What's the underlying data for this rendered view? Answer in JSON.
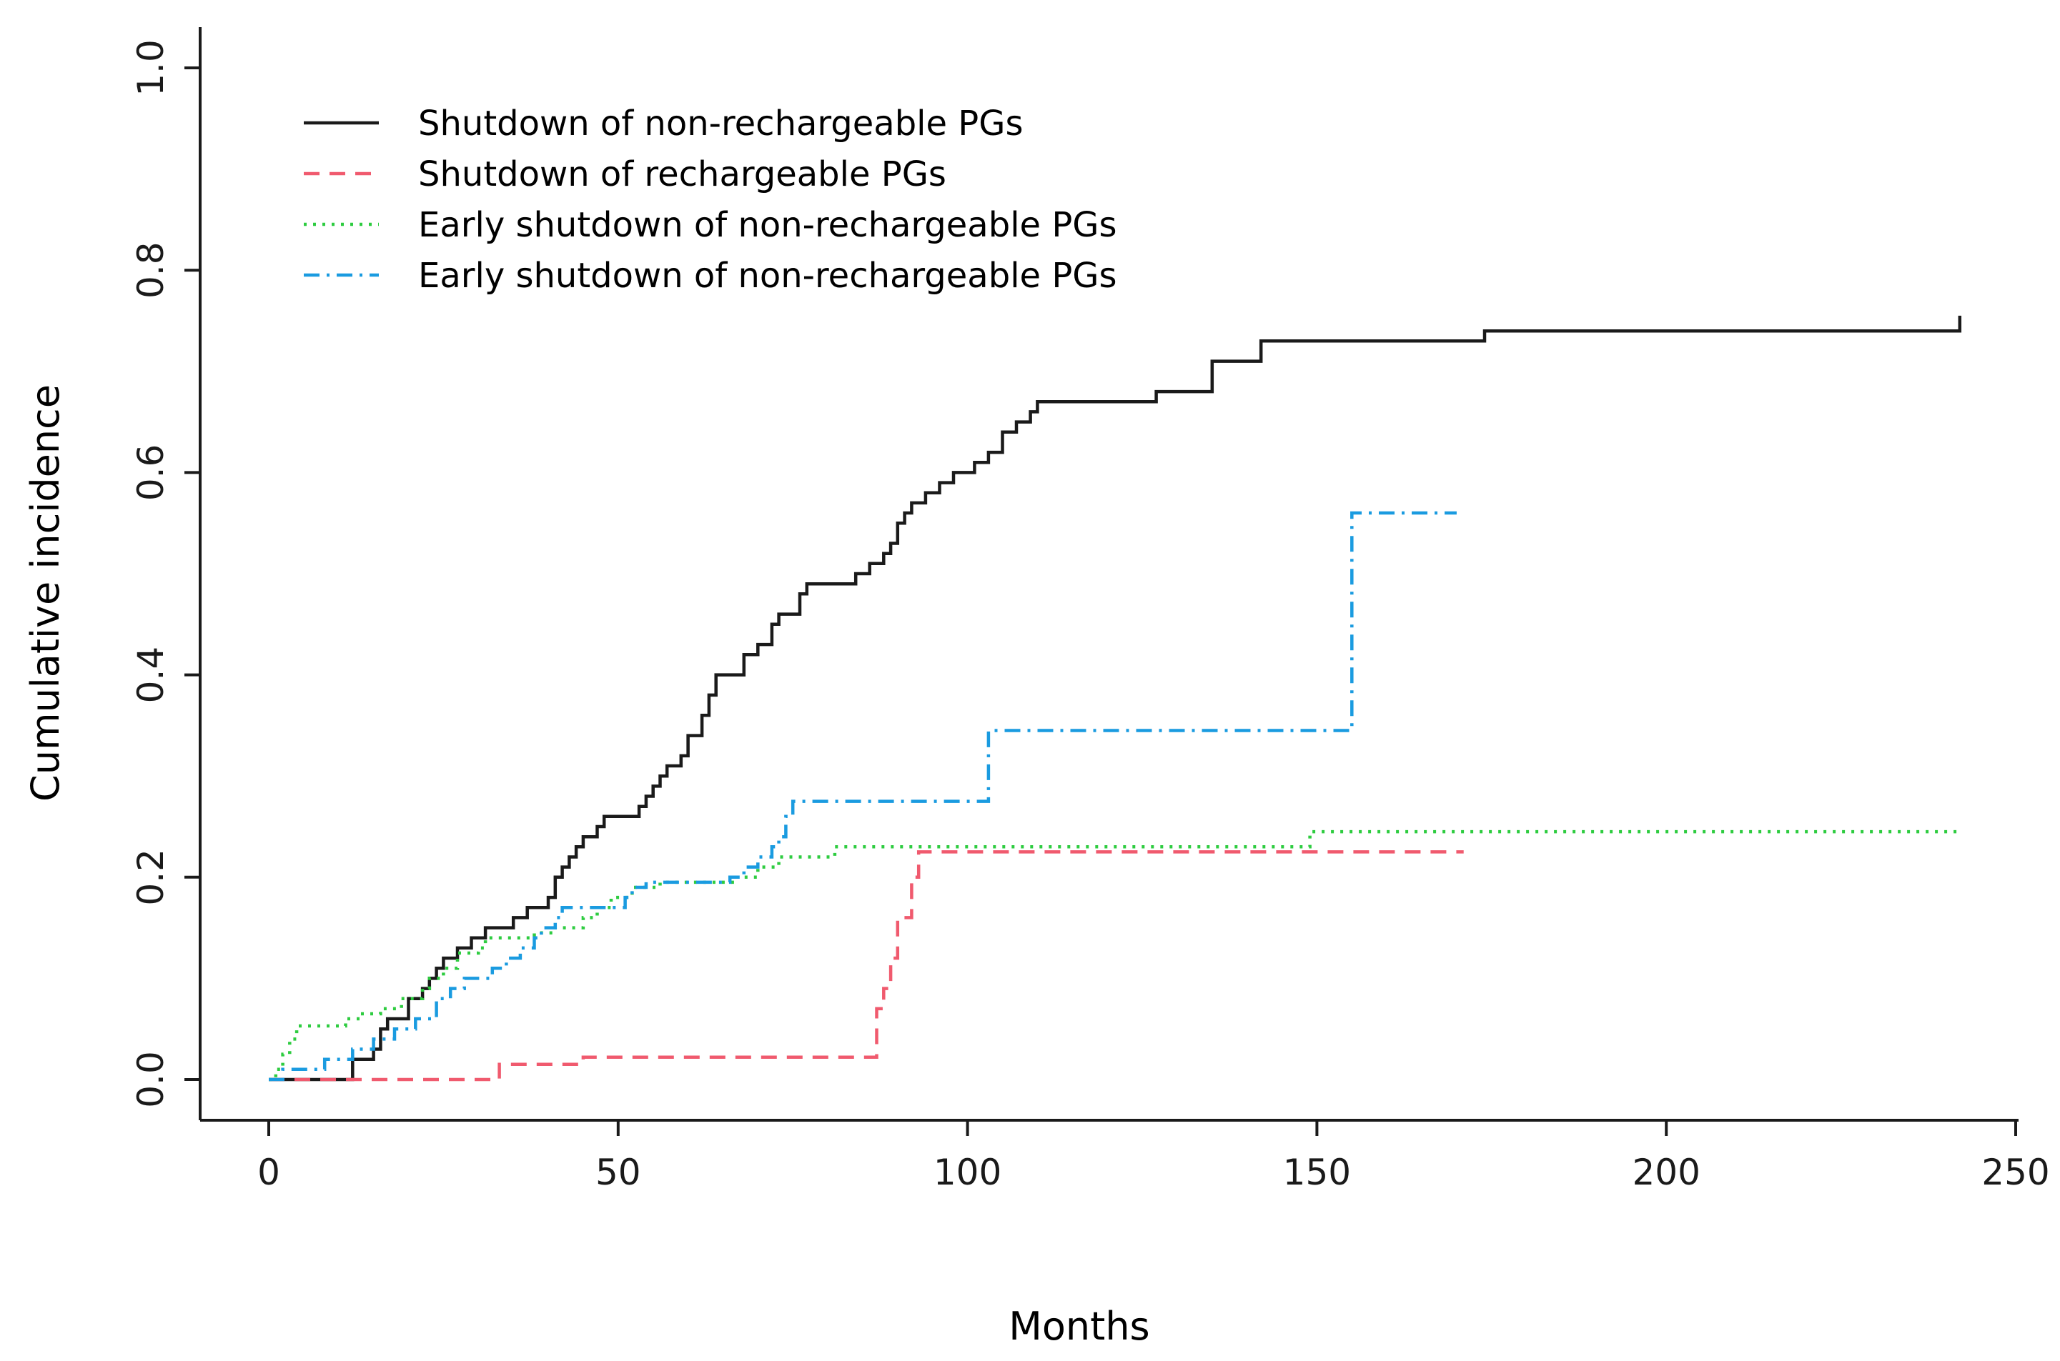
{
  "chart_data": {
    "type": "line",
    "step": true,
    "title": "",
    "xlabel": "Months",
    "ylabel": "Cumulative incidence",
    "xlim": [
      0,
      250
    ],
    "ylim": [
      0,
      1.0
    ],
    "xticks": [
      "0",
      "50",
      "100",
      "150",
      "200",
      "250"
    ],
    "yticks": [
      "0.0",
      "0.2",
      "0.4",
      "0.6",
      "0.8",
      "1.0"
    ],
    "grid": false,
    "legend_position": "top-left",
    "series": [
      {
        "name": "Shutdown of non-rechargeable PGs",
        "color": "#1a1a1a",
        "dash": "solid",
        "points": [
          [
            0,
            0.0
          ],
          [
            11,
            0.0
          ],
          [
            12,
            0.02
          ],
          [
            15,
            0.03
          ],
          [
            16,
            0.05
          ],
          [
            17,
            0.06
          ],
          [
            20,
            0.08
          ],
          [
            22,
            0.09
          ],
          [
            23,
            0.1
          ],
          [
            24,
            0.11
          ],
          [
            25,
            0.12
          ],
          [
            27,
            0.13
          ],
          [
            29,
            0.14
          ],
          [
            31,
            0.15
          ],
          [
            35,
            0.16
          ],
          [
            37,
            0.17
          ],
          [
            40,
            0.18
          ],
          [
            41,
            0.2
          ],
          [
            42,
            0.21
          ],
          [
            43,
            0.22
          ],
          [
            44,
            0.23
          ],
          [
            45,
            0.24
          ],
          [
            47,
            0.25
          ],
          [
            48,
            0.26
          ],
          [
            53,
            0.27
          ],
          [
            54,
            0.28
          ],
          [
            55,
            0.29
          ],
          [
            56,
            0.3
          ],
          [
            57,
            0.31
          ],
          [
            59,
            0.32
          ],
          [
            60,
            0.34
          ],
          [
            62,
            0.36
          ],
          [
            63,
            0.38
          ],
          [
            64,
            0.4
          ],
          [
            68,
            0.42
          ],
          [
            70,
            0.43
          ],
          [
            72,
            0.45
          ],
          [
            73,
            0.46
          ],
          [
            76,
            0.48
          ],
          [
            77,
            0.49
          ],
          [
            84,
            0.5
          ],
          [
            86,
            0.51
          ],
          [
            88,
            0.52
          ],
          [
            89,
            0.53
          ],
          [
            90,
            0.55
          ],
          [
            91,
            0.56
          ],
          [
            92,
            0.57
          ],
          [
            94,
            0.58
          ],
          [
            96,
            0.59
          ],
          [
            98,
            0.6
          ],
          [
            101,
            0.61
          ],
          [
            103,
            0.62
          ],
          [
            105,
            0.64
          ],
          [
            107,
            0.65
          ],
          [
            109,
            0.66
          ],
          [
            110,
            0.67
          ],
          [
            127,
            0.68
          ],
          [
            135,
            0.71
          ],
          [
            142,
            0.73
          ],
          [
            174,
            0.74
          ],
          [
            242,
            0.74
          ],
          [
            242,
            0.755
          ]
        ]
      },
      {
        "name": "Shutdown of  rechargeable PGs",
        "color": "#f05a6e",
        "dash": "dashed",
        "points": [
          [
            0,
            0.0
          ],
          [
            33,
            0.0
          ],
          [
            33,
            0.015
          ],
          [
            45,
            0.015
          ],
          [
            45,
            0.022
          ],
          [
            87,
            0.022
          ],
          [
            87,
            0.07
          ],
          [
            88,
            0.09
          ],
          [
            89,
            0.12
          ],
          [
            90,
            0.16
          ],
          [
            92,
            0.2
          ],
          [
            93,
            0.225
          ],
          [
            171,
            0.225
          ]
        ]
      },
      {
        "name": "Early shutdown of non-rechargeable PGs",
        "color": "#2ecc40",
        "dash": "dotted",
        "points": [
          [
            0,
            0.0
          ],
          [
            1,
            0.01
          ],
          [
            2,
            0.025
          ],
          [
            3,
            0.04
          ],
          [
            4,
            0.053
          ],
          [
            9,
            0.053
          ],
          [
            11,
            0.06
          ],
          [
            13,
            0.065
          ],
          [
            16,
            0.07
          ],
          [
            19,
            0.08
          ],
          [
            22,
            0.09
          ],
          [
            23,
            0.1
          ],
          [
            25,
            0.11
          ],
          [
            27,
            0.125
          ],
          [
            30,
            0.13
          ],
          [
            31,
            0.14
          ],
          [
            35,
            0.14
          ],
          [
            38,
            0.145
          ],
          [
            41,
            0.15
          ],
          [
            45,
            0.16
          ],
          [
            47,
            0.17
          ],
          [
            49,
            0.18
          ],
          [
            52,
            0.19
          ],
          [
            56,
            0.195
          ],
          [
            67,
            0.2
          ],
          [
            70,
            0.21
          ],
          [
            73,
            0.22
          ],
          [
            81,
            0.23
          ],
          [
            149,
            0.245
          ],
          [
            242,
            0.245
          ]
        ]
      },
      {
        "name": "Early shutdown of non-rechargeable PGs",
        "color": "#1a9be0",
        "dash": "dashdot",
        "points": [
          [
            0,
            0.0
          ],
          [
            2,
            0.01
          ],
          [
            8,
            0.02
          ],
          [
            12,
            0.03
          ],
          [
            15,
            0.04
          ],
          [
            18,
            0.05
          ],
          [
            21,
            0.06
          ],
          [
            24,
            0.08
          ],
          [
            26,
            0.09
          ],
          [
            28,
            0.1
          ],
          [
            32,
            0.11
          ],
          [
            34,
            0.12
          ],
          [
            36,
            0.13
          ],
          [
            38,
            0.14
          ],
          [
            39,
            0.15
          ],
          [
            41,
            0.16
          ],
          [
            42,
            0.17
          ],
          [
            51,
            0.18
          ],
          [
            52,
            0.19
          ],
          [
            54,
            0.195
          ],
          [
            66,
            0.2
          ],
          [
            68,
            0.21
          ],
          [
            70,
            0.22
          ],
          [
            72,
            0.23
          ],
          [
            73,
            0.24
          ],
          [
            74,
            0.26
          ],
          [
            75,
            0.275
          ],
          [
            103,
            0.275
          ],
          [
            103,
            0.345
          ],
          [
            155,
            0.345
          ],
          [
            155,
            0.56
          ],
          [
            170,
            0.56
          ]
        ]
      }
    ]
  }
}
